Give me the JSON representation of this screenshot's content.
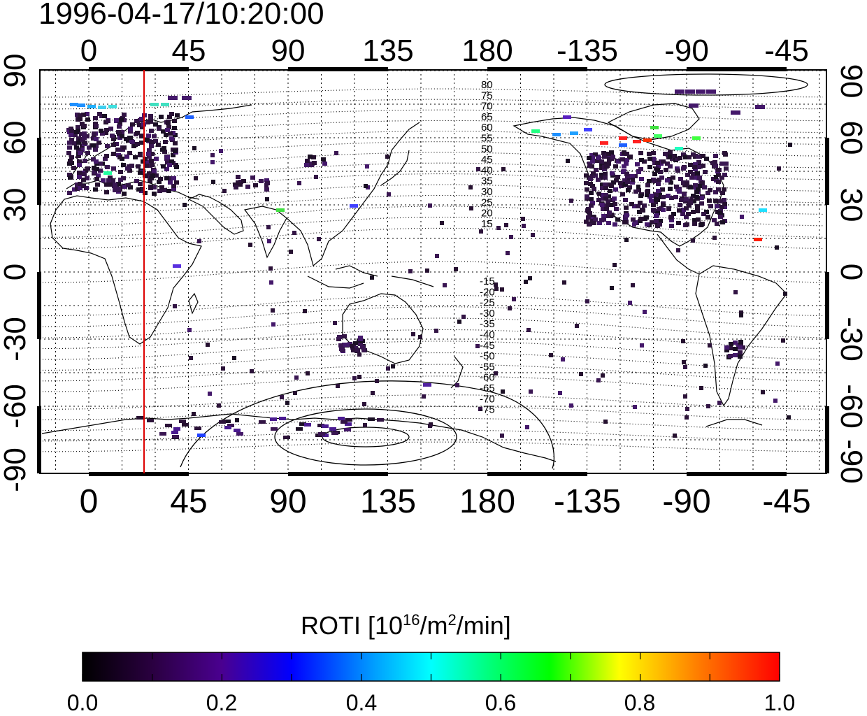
{
  "timestamp": "1996-04-17/10:20:00",
  "map": {
    "top_lon_ticks": [
      "0",
      "45",
      "90",
      "135",
      "180",
      "-135",
      "-90",
      "-45"
    ],
    "bottom_lon_ticks": [
      "0",
      "45",
      "90",
      "135",
      "180",
      "-135",
      "-90",
      "-45"
    ],
    "left_lat_ticks": [
      "90",
      "60",
      "30",
      "0",
      "-30",
      "-60",
      "-90"
    ],
    "right_lat_ticks": [
      "90",
      "60",
      "30",
      "0",
      "-30",
      "-60",
      "-90"
    ],
    "mlat_labels_north": [
      "80",
      "75",
      "70",
      "65",
      "60",
      "55",
      "50",
      "45",
      "40",
      "35",
      "30",
      "25",
      "20",
      "15"
    ],
    "mlat_labels_south": [
      "-15",
      "-20",
      "-25",
      "-30",
      "-35",
      "-40",
      "-45",
      "-50",
      "-55",
      "-60",
      "-65",
      "-70",
      "-75"
    ],
    "terminator_color": "#dd0000",
    "terminator_lon": 25
  },
  "colorbar": {
    "label_main": "ROTI  [10",
    "label_sup1": "16",
    "label_mid": "/m",
    "label_sup2": "2",
    "label_end": "/min]",
    "ticks": [
      "0.0",
      "0.2",
      "0.4",
      "0.6",
      "0.8",
      "1.0"
    ],
    "colormap": [
      "#000000",
      "#2a0040",
      "#4a0090",
      "#0000ff",
      "#00a0ff",
      "#00ffff",
      "#00ff80",
      "#00ff00",
      "#ffff00",
      "#ff8000",
      "#ff0000"
    ]
  }
}
